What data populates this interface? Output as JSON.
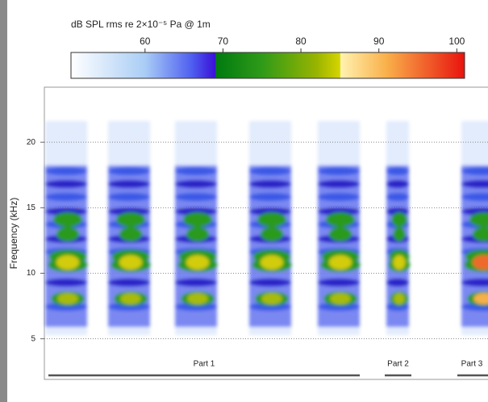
{
  "chart_data": {
    "type": "spectrogram",
    "colorbar_label": "dB SPL rms re 2×10⁻⁵ Pa @ 1m",
    "colorbar_lim": [
      50.5,
      101
    ],
    "colorbar_ticks": [
      60,
      70,
      80,
      90,
      100
    ],
    "colormap": [
      {
        "value": 50.5,
        "color": "#ffffff"
      },
      {
        "value": 60,
        "color": "#a9cdf5"
      },
      {
        "value": 66,
        "color": "#4e5ff0"
      },
      {
        "value": 69,
        "color": "#3a10d8"
      },
      {
        "value": 69.1,
        "color": "#007a10"
      },
      {
        "value": 75,
        "color": "#2f9a18"
      },
      {
        "value": 82,
        "color": "#98b400"
      },
      {
        "value": 85,
        "color": "#d6d400"
      },
      {
        "value": 85.1,
        "color": "#fff2b0"
      },
      {
        "value": 91,
        "color": "#f9b04a"
      },
      {
        "value": 101,
        "color": "#e8130e"
      }
    ],
    "y_label": "Frequency (kHz)",
    "ylim": [
      1.9,
      24.2
    ],
    "yticks": [
      5,
      10,
      15,
      20
    ],
    "grid": true,
    "parts": [
      "Part 1",
      "Part 2",
      "Part 3"
    ]
  }
}
